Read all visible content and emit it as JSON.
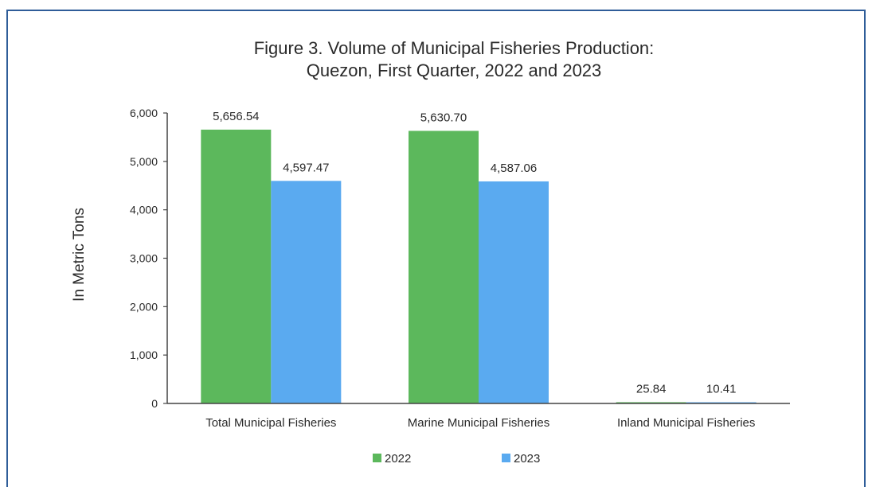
{
  "chart_data": {
    "type": "bar",
    "title": "Figure 3. Volume of Municipal Fisheries  Production:",
    "subtitle": "Quezon, First Quarter, 2022 and 2023",
    "xlabel": "",
    "ylabel": "In Metric Tons",
    "ylim": [
      0,
      6000
    ],
    "yticks": [
      0,
      1000,
      2000,
      3000,
      4000,
      5000,
      6000
    ],
    "ytick_labels": [
      "0",
      "1,000",
      "2,000",
      "3,000",
      "4,000",
      "5,000",
      "6,000"
    ],
    "categories": [
      "Total Municipal Fisheries",
      "Marine Municipal Fisheries",
      "Inland Municipal Fisheries"
    ],
    "series": [
      {
        "name": "2022",
        "values": [
          5656.54,
          5630.7,
          25.84
        ],
        "labels": [
          "5,656.54",
          "5,630.70",
          "25.84"
        ],
        "color": "#5cb85c"
      },
      {
        "name": "2023",
        "values": [
          4597.47,
          4587.06,
          10.41
        ],
        "labels": [
          "4,597.47",
          "4,587.06",
          "10.41"
        ],
        "color": "#5aaaf0"
      }
    ],
    "grid": false,
    "legend_position": "bottom-center"
  }
}
